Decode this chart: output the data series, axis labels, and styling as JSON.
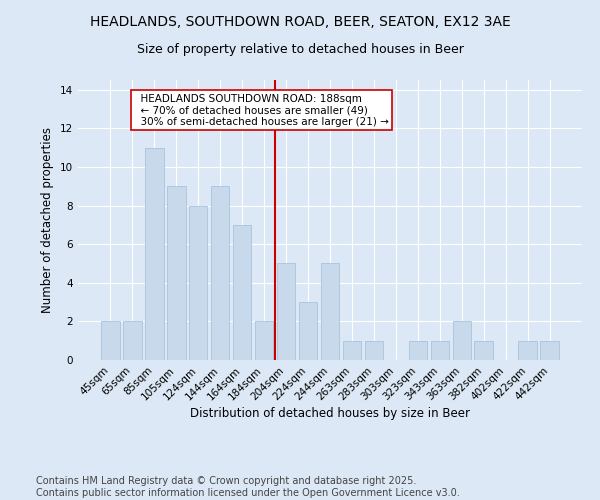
{
  "title1": "HEADLANDS, SOUTHDOWN ROAD, BEER, SEATON, EX12 3AE",
  "title2": "Size of property relative to detached houses in Beer",
  "xlabel": "Distribution of detached houses by size in Beer",
  "ylabel": "Number of detached properties",
  "categories": [
    "45sqm",
    "65sqm",
    "85sqm",
    "105sqm",
    "124sqm",
    "144sqm",
    "164sqm",
    "184sqm",
    "204sqm",
    "224sqm",
    "244sqm",
    "263sqm",
    "283sqm",
    "303sqm",
    "323sqm",
    "343sqm",
    "363sqm",
    "382sqm",
    "402sqm",
    "422sqm",
    "442sqm"
  ],
  "values": [
    2,
    2,
    11,
    9,
    8,
    9,
    7,
    2,
    5,
    3,
    5,
    1,
    1,
    0,
    1,
    1,
    2,
    1,
    0,
    1,
    1
  ],
  "bar_color": "#c9d9ec",
  "bar_edge_color": "#a8c4de",
  "vline_x_index": 7,
  "vline_color": "#cc0000",
  "annotation_text": "  HEADLANDS SOUTHDOWN ROAD: 188sqm\n  ← 70% of detached houses are smaller (49)\n  30% of semi-detached houses are larger (21) →",
  "annotation_box_color": "#ffffff",
  "annotation_box_edge_color": "#cc0000",
  "ylim": [
    0,
    14.5
  ],
  "yticks": [
    0,
    2,
    4,
    6,
    8,
    10,
    12,
    14
  ],
  "footer": "Contains HM Land Registry data © Crown copyright and database right 2025.\nContains public sector information licensed under the Open Government Licence v3.0.",
  "bg_color": "#dce8f5",
  "plot_bg_color": "#dce8f5",
  "title_fontsize": 10,
  "subtitle_fontsize": 9,
  "axis_label_fontsize": 8.5,
  "tick_fontsize": 7.5,
  "footer_fontsize": 7
}
